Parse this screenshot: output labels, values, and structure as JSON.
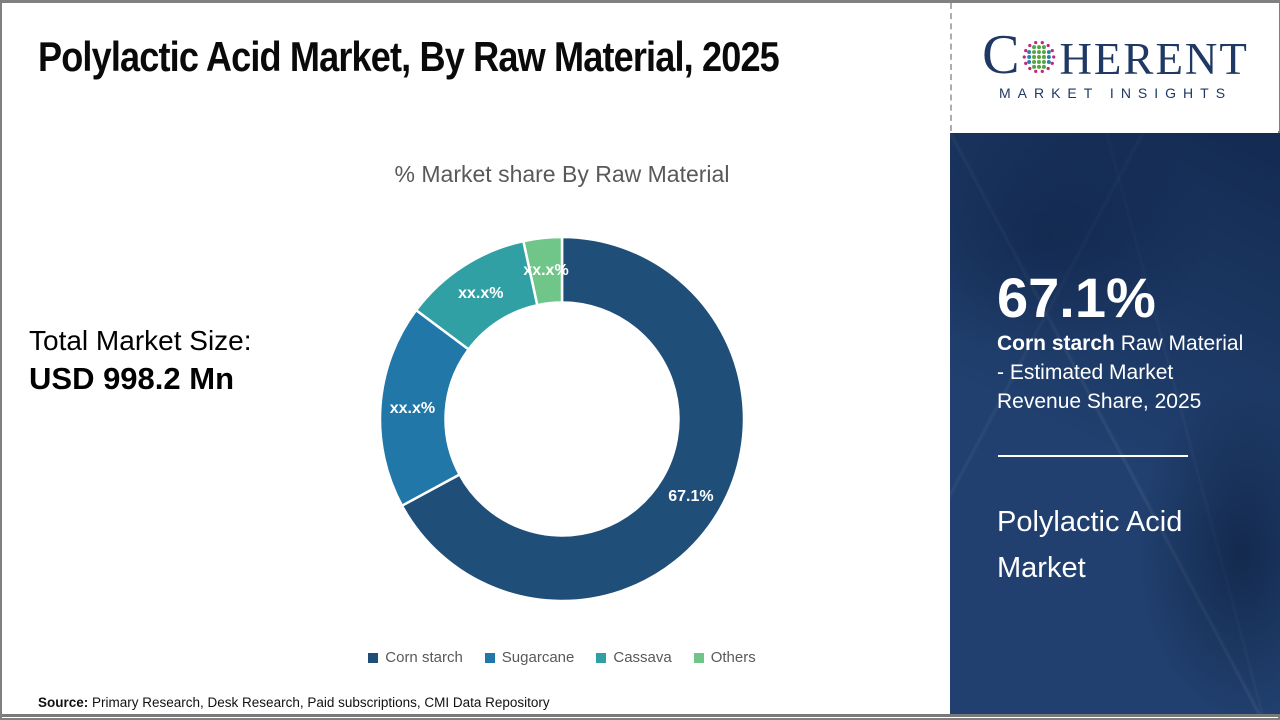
{
  "page": {
    "title": "Polylactic Acid Market, By Raw Material, 2025",
    "source_label": "Source:",
    "source_text": " Primary Research, Desk Research, Paid subscriptions, CMI Data Repository"
  },
  "logo": {
    "name_start": "C",
    "name_end": "HERENT",
    "tagline": "MARKET INSIGHTS",
    "brand_color": "#1F3864",
    "globe_dot_colors": {
      "ring": "#C2267E",
      "outer_col": "#2E7FA8",
      "inner_col": "#54A546"
    }
  },
  "left_panel": {
    "total_label": "Total Market Size:",
    "total_value": "USD 998.2 Mn"
  },
  "chart_data": {
    "type": "pie",
    "subtype": "donut",
    "title": "% Market share By Raw Material",
    "categories": [
      "Corn starch",
      "Sugarcane",
      "Cassava",
      "Others"
    ],
    "values": [
      67.1,
      18.1,
      11.4,
      3.4
    ],
    "slice_labels": [
      "67.1%",
      "xx.x%",
      "xx.x%",
      "xx.x%"
    ],
    "colors": [
      "#1F4E79",
      "#2077A8",
      "#31A0A5",
      "#70C688"
    ],
    "start_angle_deg": 0,
    "inner_radius_ratio": 0.64,
    "legend_position": "bottom",
    "label_color": "#FFFFFF",
    "title_color": "#595959"
  },
  "sidebar": {
    "stat_value": "67.1%",
    "stat_bold": "Corn starch",
    "stat_rest": " Raw Material - Estimated Market Revenue Share, 2025",
    "market_name": "Polylactic Acid Market",
    "bg_color": "#21406F",
    "text_color": "#FFFFFF"
  }
}
